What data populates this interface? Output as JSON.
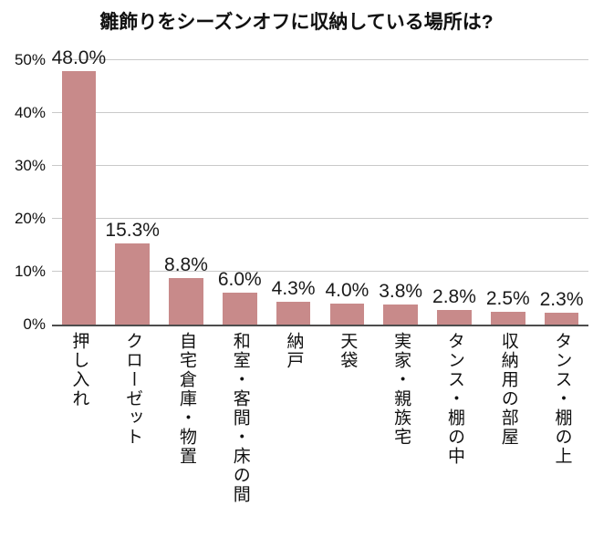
{
  "chart_data": {
    "type": "bar",
    "title": "雛飾りをシーズンオフに収納している場所は?",
    "categories": [
      "押し入れ",
      "クローゼット",
      "自宅倉庫・物置",
      "和室・客間・床の間",
      "納戸",
      "天袋",
      "実家・親族宅",
      "タンス・棚の中",
      "収納用の部屋",
      "タンス・棚の上"
    ],
    "values": [
      48.0,
      15.3,
      8.8,
      6.0,
      4.3,
      4.0,
      3.8,
      2.8,
      2.5,
      2.3
    ],
    "value_labels": [
      "48.0%",
      "15.3%",
      "8.8%",
      "6.0%",
      "4.3%",
      "4.0%",
      "3.8%",
      "2.8%",
      "2.5%",
      "2.3%"
    ],
    "xlabel": "",
    "ylabel": "",
    "ylim": [
      0,
      50
    ],
    "yticks": [
      0,
      10,
      20,
      30,
      40,
      50
    ],
    "ytick_labels": [
      "0%",
      "10%",
      "20%",
      "30%",
      "40%",
      "50%"
    ],
    "grid": true,
    "legend": "none",
    "bar_color": "#c88a8a",
    "gridline_color": "#c9c9c9",
    "axis_color": "#4d4d4d"
  }
}
